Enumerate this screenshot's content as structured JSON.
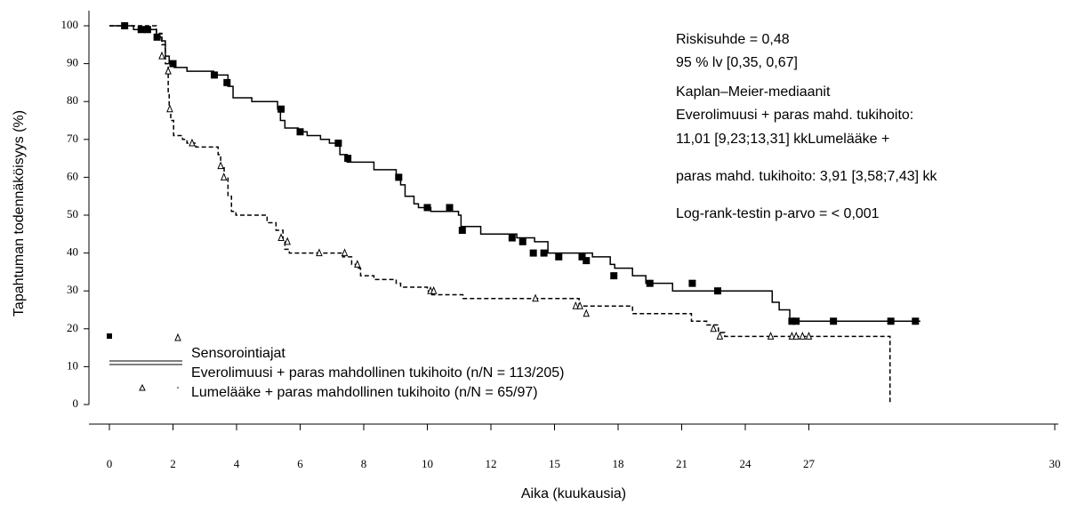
{
  "chart_data": {
    "type": "step",
    "ylabel": "Tapahtuman todennäköisyys (%)",
    "xlabel": "Aika (kuukausia)",
    "xlim": [
      0,
      30
    ],
    "ylim": [
      0,
      100
    ],
    "xticks": [
      0,
      2,
      4,
      6,
      8,
      10,
      12,
      15,
      18,
      21,
      24,
      27,
      30
    ],
    "yticks": [
      0,
      10,
      20,
      30,
      40,
      50,
      60,
      70,
      80,
      90,
      100
    ],
    "legend_title": "Sensorointiajat",
    "annotations": [
      "Riskisuhde = 0,48",
      "95 % lv [0,35, 0,67]",
      "Kaplan–Meier-mediaanit",
      "Everolimuusi + paras mahd. tukihoito:",
      "11,01 [9,23;13,31] kkLumelääke +",
      "paras mahd. tukihoito: 3,91 [3,58;7,43] kk",
      "Log-rank-testin p-arvo = < 0,001"
    ],
    "series": [
      {
        "name": "Everolimuusi + paras mahdollinen tukihoito (n/N = 113/205)",
        "color": "#000000",
        "style": "solid",
        "marker": "square",
        "x": [
          0,
          0.76,
          1.48,
          1.65,
          1.76,
          1.88,
          2.04,
          2.44,
          3.28,
          3.73,
          3.89,
          4.48,
          5.29,
          5.38,
          5.52,
          5.94,
          6.22,
          6.64,
          6.92,
          7.25,
          7.48,
          8.32,
          9.02,
          9.16,
          9.3,
          9.58,
          9.72,
          10.11,
          10.98,
          11.06,
          11.68,
          13.22,
          14.06,
          14.69,
          16.79,
          17.63,
          17.84,
          18.68,
          19.31,
          20.57,
          25.27,
          25.6,
          26.1,
          28.36
        ],
        "values": [
          100,
          99,
          97,
          96,
          92,
          90,
          89,
          88,
          87,
          84,
          81,
          80,
          78,
          75,
          73,
          72,
          71,
          70,
          69,
          66,
          64,
          62,
          60,
          58,
          55,
          53,
          52,
          51,
          50,
          47,
          45,
          44,
          43,
          40,
          39,
          37,
          36,
          34,
          32,
          30,
          27,
          25,
          22,
          22
        ],
        "censor_x": [
          0.48,
          1.0,
          1.2,
          1.5,
          2.0,
          3.3,
          3.7,
          5.4,
          6.0,
          7.2,
          7.5,
          9.1,
          10.0,
          10.7,
          11.1,
          13.0,
          13.5,
          14.0,
          14.5,
          15.2,
          16.3,
          16.5,
          17.8,
          19.5,
          21.5,
          22.7,
          26.2,
          26.4,
          27.3,
          28.0,
          28.3
        ],
        "censor_values": [
          100,
          99,
          99,
          97,
          90,
          87,
          85,
          78,
          72,
          69,
          65,
          60,
          52,
          52,
          46,
          44,
          43,
          40,
          40,
          39,
          39,
          38,
          34,
          32,
          32,
          30,
          22,
          22,
          22,
          22,
          22
        ]
      },
      {
        "name": "Lumelääke + paras mahdollinen tukihoito (n/N = 65/97)",
        "color": "#000000",
        "style": "dashed",
        "marker": "triangle",
        "x": [
          0,
          1.48,
          1.65,
          1.76,
          1.85,
          1.88,
          1.93,
          2.02,
          2.3,
          2.44,
          2.72,
          3.42,
          3.5,
          3.61,
          3.73,
          3.84,
          3.98,
          4.96,
          5.24,
          5.46,
          5.52,
          5.66,
          7.34,
          7.62,
          7.76,
          7.9,
          8.32,
          9.02,
          9.16,
          10.0,
          10.14,
          11.12,
          16.16,
          18.68,
          21.46,
          22.18,
          22.73,
          23.03,
          27.99,
          27.99
        ],
        "values": [
          100,
          98,
          95,
          90,
          82,
          78,
          75,
          71,
          70,
          69,
          68,
          66,
          63,
          60,
          55,
          51,
          50,
          48,
          46,
          43,
          41,
          40,
          39,
          37,
          36,
          34,
          33,
          32,
          31,
          30,
          29,
          28,
          26,
          24,
          22,
          21,
          19,
          18,
          18,
          0
        ],
        "censor_x": [
          1.65,
          1.85,
          1.9,
          2.6,
          3.5,
          3.6,
          5.4,
          5.6,
          6.6,
          7.4,
          7.8,
          10.1,
          10.2,
          14.1,
          16.0,
          16.2,
          16.5,
          22.5,
          22.8,
          25.2,
          26.2,
          26.4,
          26.7,
          27.0
        ],
        "censor_values": [
          92,
          88,
          78,
          69,
          63,
          60,
          44,
          43,
          40,
          40,
          37,
          30,
          30,
          28,
          26,
          26,
          24,
          20,
          18,
          18,
          18,
          18,
          18,
          18
        ]
      }
    ]
  }
}
